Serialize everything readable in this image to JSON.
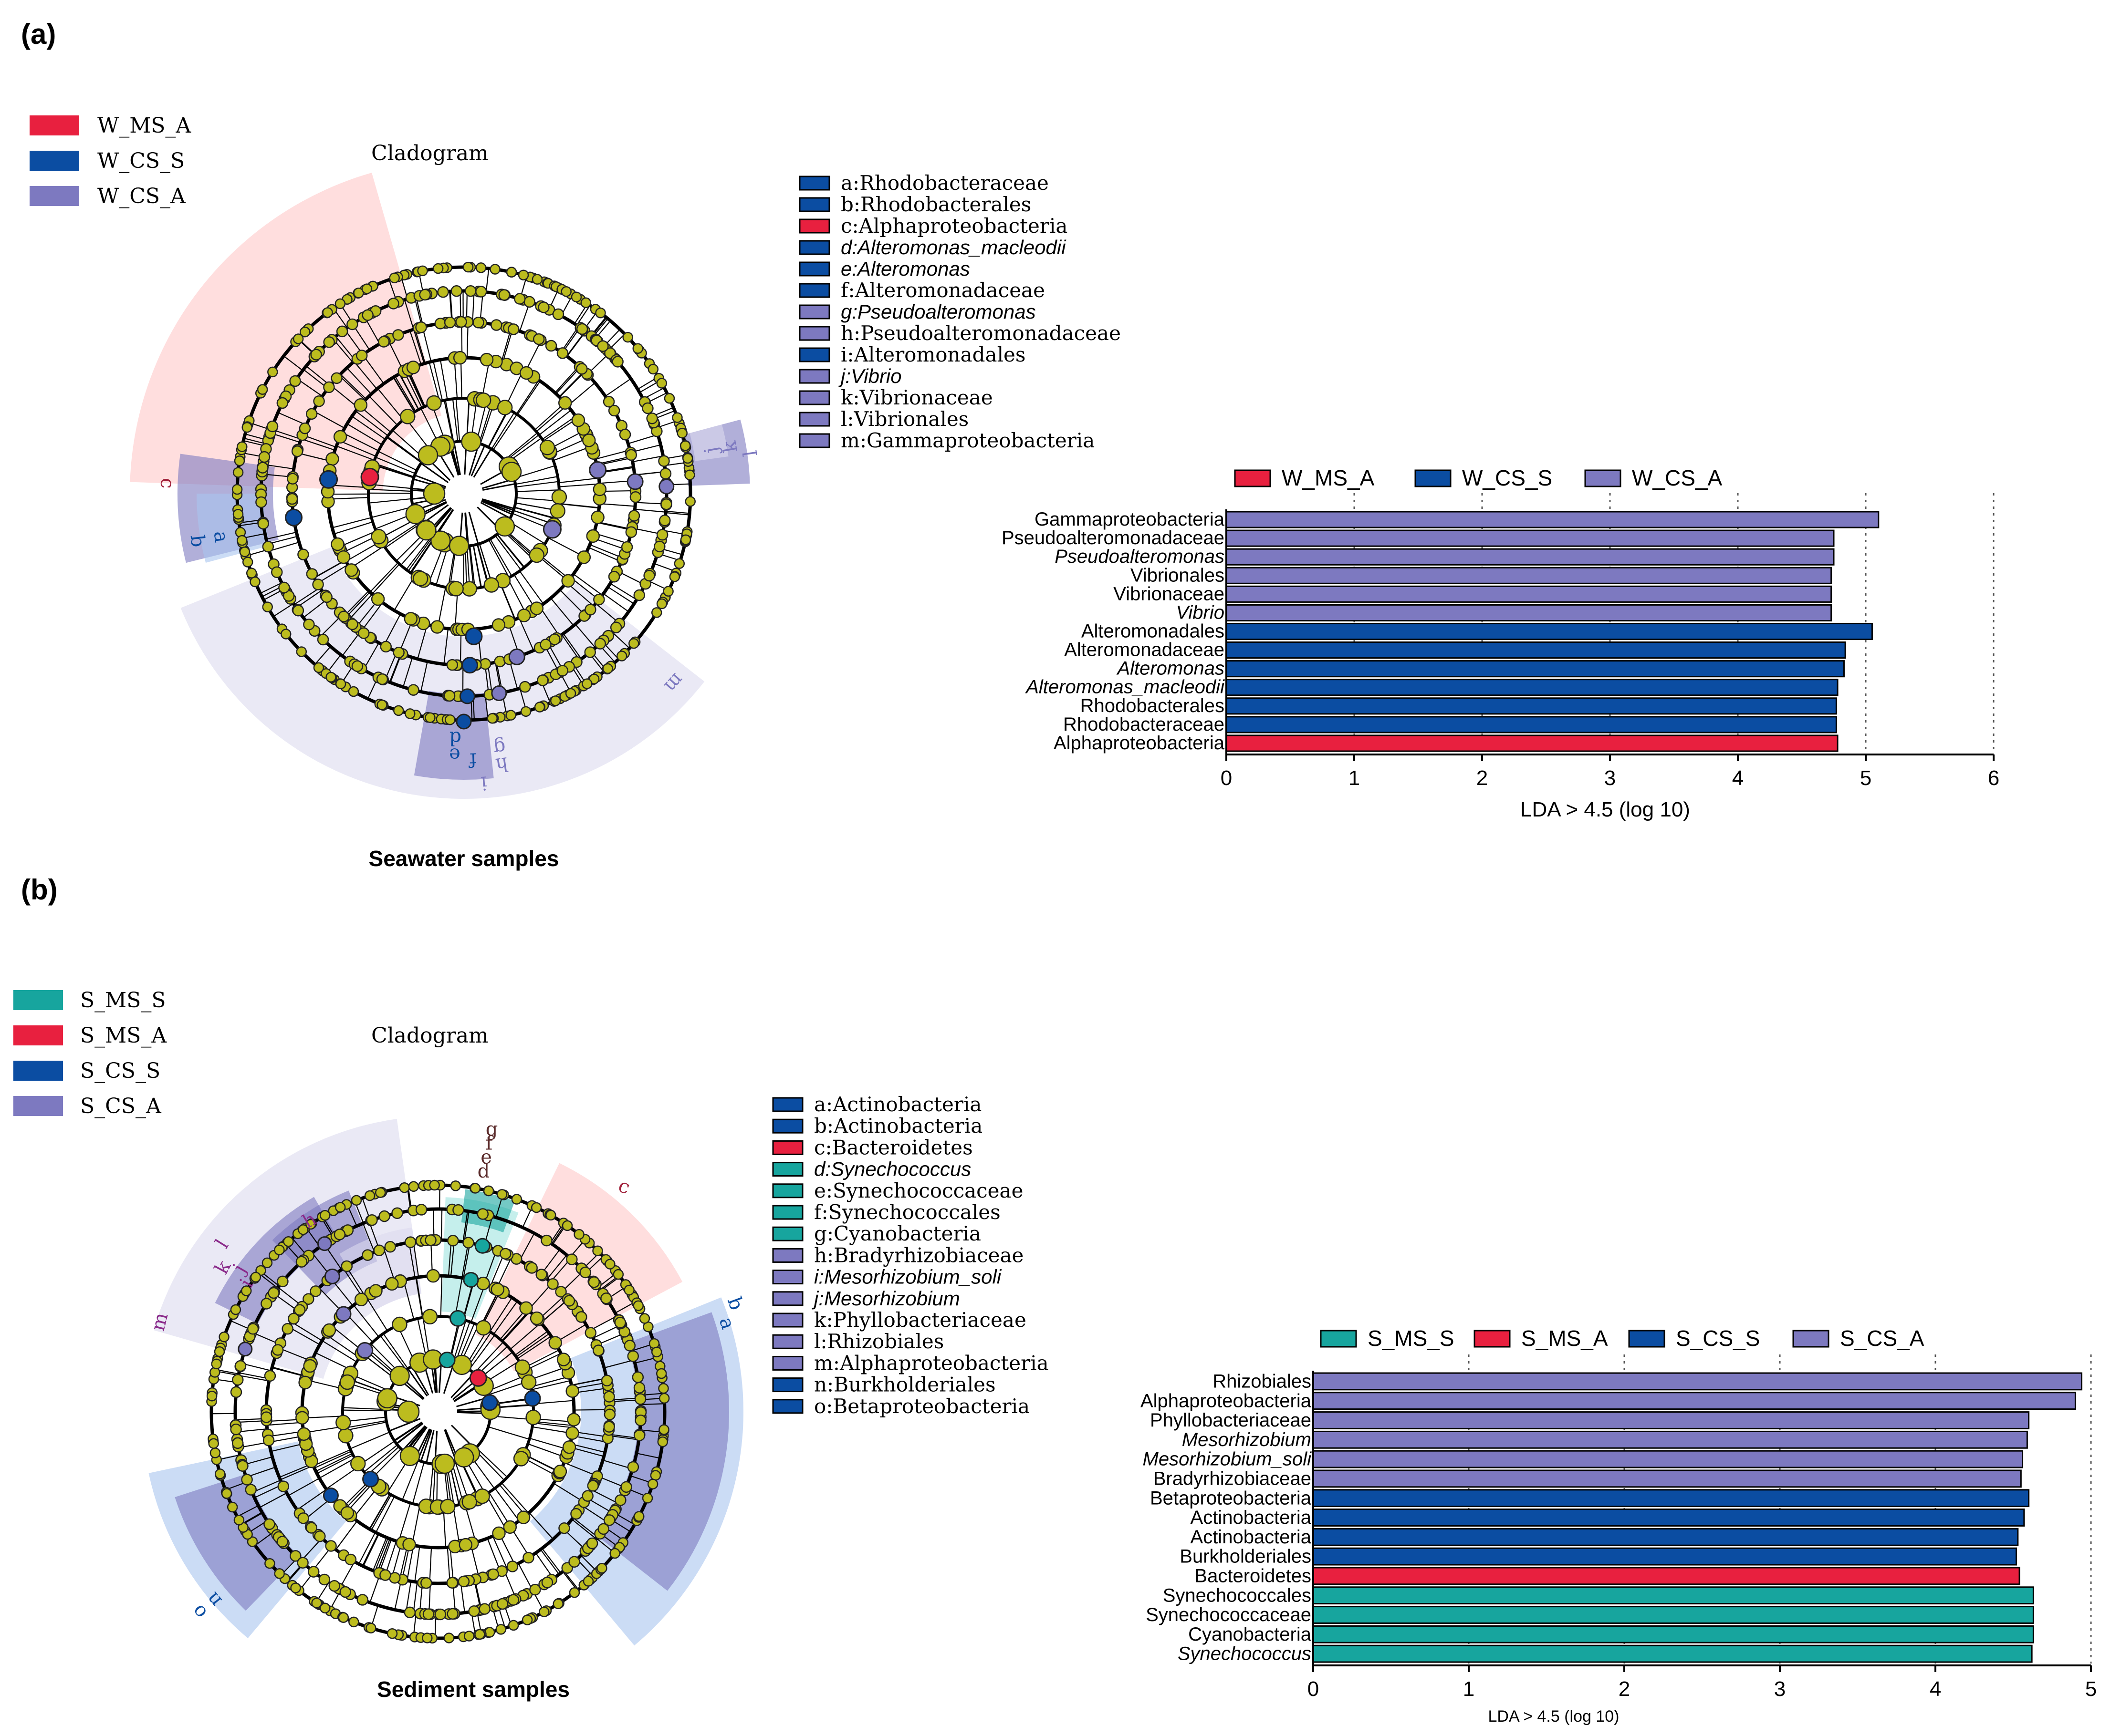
{
  "colors": {
    "w_ms_a": "#e8203f",
    "w_cs_s": "#0b4da2",
    "w_cs_a": "#7d79c0",
    "s_ms_s": "#17a59e",
    "node": "#bcbc1e",
    "bg_red": "#ffc8c8",
    "bg_purple": "#dcdaee",
    "bg_blue": "#a8c4ee"
  },
  "panels": {
    "a": {
      "label": "(a)",
      "cladogram_title": "Cladogram",
      "caption": "Seawater samples",
      "group_legend": [
        "W_MS_A",
        "W_CS_S",
        "W_CS_A"
      ],
      "taxa_legend": [
        {
          "text": "a:Rhodobacteraceae",
          "italic": false,
          "color": "#0b4da2"
        },
        {
          "text": "b:Rhodobacterales",
          "italic": false,
          "color": "#0b4da2"
        },
        {
          "text": "c:Alphaproteobacteria",
          "italic": false,
          "color": "#e8203f"
        },
        {
          "text": "d:Alteromonas_macleodii",
          "italic": true,
          "color": "#0b4da2"
        },
        {
          "text": "e:Alteromonas",
          "italic": true,
          "color": "#0b4da2"
        },
        {
          "text": "f:Alteromonadaceae",
          "italic": false,
          "color": "#0b4da2"
        },
        {
          "text": "g:Pseudoalteromonas",
          "italic": true,
          "color": "#7d79c0"
        },
        {
          "text": "h:Pseudoalteromonadaceae",
          "italic": false,
          "color": "#7d79c0"
        },
        {
          "text": "i:Alteromonadales",
          "italic": false,
          "color": "#0b4da2"
        },
        {
          "text": "j:Vibrio",
          "italic": true,
          "color": "#7d79c0"
        },
        {
          "text": "k:Vibrionaceae",
          "italic": false,
          "color": "#7d79c0"
        },
        {
          "text": "l:Vibrionales",
          "italic": false,
          "color": "#7d79c0"
        },
        {
          "text": "m:Gammaproteobacteria",
          "italic": false,
          "color": "#7d79c0"
        }
      ],
      "clade_letters": [
        "a",
        "b",
        "c",
        "d",
        "e",
        "f",
        "g",
        "h",
        "i",
        "j",
        "k",
        "l",
        "m"
      ]
    },
    "b": {
      "label": "(b)",
      "cladogram_title": "Cladogram",
      "caption": "Sediment samples",
      "group_legend": [
        "S_MS_S",
        "S_MS_A",
        "S_CS_S",
        "S_CS_A"
      ],
      "taxa_legend": [
        {
          "text": "a:Actinobacteria",
          "italic": false,
          "color": "#0b4da2"
        },
        {
          "text": "b:Actinobacteria",
          "italic": false,
          "color": "#0b4da2"
        },
        {
          "text": "c:Bacteroidetes",
          "italic": false,
          "color": "#e8203f"
        },
        {
          "text": "d:Synechococcus",
          "italic": true,
          "color": "#17a59e"
        },
        {
          "text": "e:Synechococcaceae",
          "italic": false,
          "color": "#17a59e"
        },
        {
          "text": "f:Synechococcales",
          "italic": false,
          "color": "#17a59e"
        },
        {
          "text": "g:Cyanobacteria",
          "italic": false,
          "color": "#17a59e"
        },
        {
          "text": "h:Bradyrhizobiaceae",
          "italic": false,
          "color": "#7d79c0"
        },
        {
          "text": "i:Mesorhizobium_soli",
          "italic": true,
          "color": "#7d79c0"
        },
        {
          "text": "j:Mesorhizobium",
          "italic": true,
          "color": "#7d79c0"
        },
        {
          "text": "k:Phyllobacteriaceae",
          "italic": false,
          "color": "#7d79c0"
        },
        {
          "text": "l:Rhizobiales",
          "italic": false,
          "color": "#7d79c0"
        },
        {
          "text": "m:Alphaproteobacteria",
          "italic": false,
          "color": "#7d79c0"
        },
        {
          "text": "n:Burkholderiales",
          "italic": false,
          "color": "#0b4da2"
        },
        {
          "text": "o:Betaproteobacteria",
          "italic": false,
          "color": "#0b4da2"
        }
      ],
      "clade_letters": [
        "a",
        "b",
        "c",
        "d",
        "e",
        "f",
        "g",
        "h",
        "i",
        "j",
        "k",
        "l",
        "m",
        "n",
        "o"
      ]
    }
  },
  "chart_data": [
    {
      "type": "bar",
      "orientation": "horizontal",
      "panel": "a",
      "legend": [
        "W_MS_A",
        "W_CS_S",
        "W_CS_A"
      ],
      "legend_colors": [
        "#e8203f",
        "#0b4da2",
        "#7d79c0"
      ],
      "categories": [
        "Gammaproteobacteria",
        "Pseudoalteromonadaceae",
        "Pseudoalteromonas",
        "Vibrionales",
        "Vibrionaceae",
        "Vibrio",
        "Alteromonadales",
        "Alteromonadaceae",
        "Alteromonas",
        "Alteromonas_macleodii",
        "Rhodobacterales",
        "Rhodobacteraceae",
        "Alphaproteobacteria"
      ],
      "italic": [
        false,
        false,
        true,
        false,
        false,
        true,
        false,
        false,
        true,
        true,
        false,
        false,
        false
      ],
      "values": [
        5.1,
        4.75,
        4.75,
        4.73,
        4.73,
        4.73,
        5.05,
        4.84,
        4.83,
        4.78,
        4.77,
        4.77,
        4.78
      ],
      "groups": [
        "W_CS_A",
        "W_CS_A",
        "W_CS_A",
        "W_CS_A",
        "W_CS_A",
        "W_CS_A",
        "W_CS_S",
        "W_CS_S",
        "W_CS_S",
        "W_CS_S",
        "W_CS_S",
        "W_CS_S",
        "W_MS_A"
      ],
      "colors": [
        "#7d79c0",
        "#7d79c0",
        "#7d79c0",
        "#7d79c0",
        "#7d79c0",
        "#7d79c0",
        "#0b4da2",
        "#0b4da2",
        "#0b4da2",
        "#0b4da2",
        "#0b4da2",
        "#0b4da2",
        "#e8203f"
      ],
      "xticks": [
        0,
        1,
        2,
        3,
        4,
        5,
        6
      ],
      "xlim": [
        0,
        6
      ],
      "xlabel": "LDA > 4.5 (log 10)",
      "grid": "dotted vertical"
    },
    {
      "type": "bar",
      "orientation": "horizontal",
      "panel": "b",
      "legend": [
        "S_MS_S",
        "S_MS_A",
        "S_CS_S",
        "S_CS_A"
      ],
      "legend_colors": [
        "#17a59e",
        "#e8203f",
        "#0b4da2",
        "#7d79c0"
      ],
      "categories": [
        "Rhizobiales",
        "Alphaproteobacteria",
        "Phyllobacteriaceae",
        "Mesorhizobium",
        "Mesorhizobium_soli",
        "Bradyrhizobiaceae",
        "Betaproteobacteria",
        "Actinobacteria",
        "Actinobacteria",
        "Burkholderiales",
        "Bacteroidetes",
        "Synechococcales",
        "Synechococcaceae",
        "Cyanobacteria",
        "Synechococcus"
      ],
      "italic": [
        false,
        false,
        false,
        true,
        true,
        false,
        false,
        false,
        false,
        false,
        false,
        false,
        false,
        false,
        true
      ],
      "values": [
        4.94,
        4.9,
        4.6,
        4.59,
        4.56,
        4.55,
        4.6,
        4.57,
        4.53,
        4.52,
        4.54,
        4.63,
        4.63,
        4.63,
        4.62
      ],
      "groups": [
        "S_CS_A",
        "S_CS_A",
        "S_CS_A",
        "S_CS_A",
        "S_CS_A",
        "S_CS_A",
        "S_CS_S",
        "S_CS_S",
        "S_CS_S",
        "S_CS_S",
        "S_MS_A",
        "S_MS_S",
        "S_MS_S",
        "S_MS_S",
        "S_MS_S"
      ],
      "colors": [
        "#7d79c0",
        "#7d79c0",
        "#7d79c0",
        "#7d79c0",
        "#7d79c0",
        "#7d79c0",
        "#0b4da2",
        "#0b4da2",
        "#0b4da2",
        "#0b4da2",
        "#e8203f",
        "#17a59e",
        "#17a59e",
        "#17a59e",
        "#17a59e"
      ],
      "xticks": [
        0,
        1,
        2,
        3,
        4,
        5
      ],
      "xlim": [
        0,
        5
      ],
      "xlabel": "LDA > 4.5 (log 10)",
      "grid": "dotted vertical"
    }
  ]
}
